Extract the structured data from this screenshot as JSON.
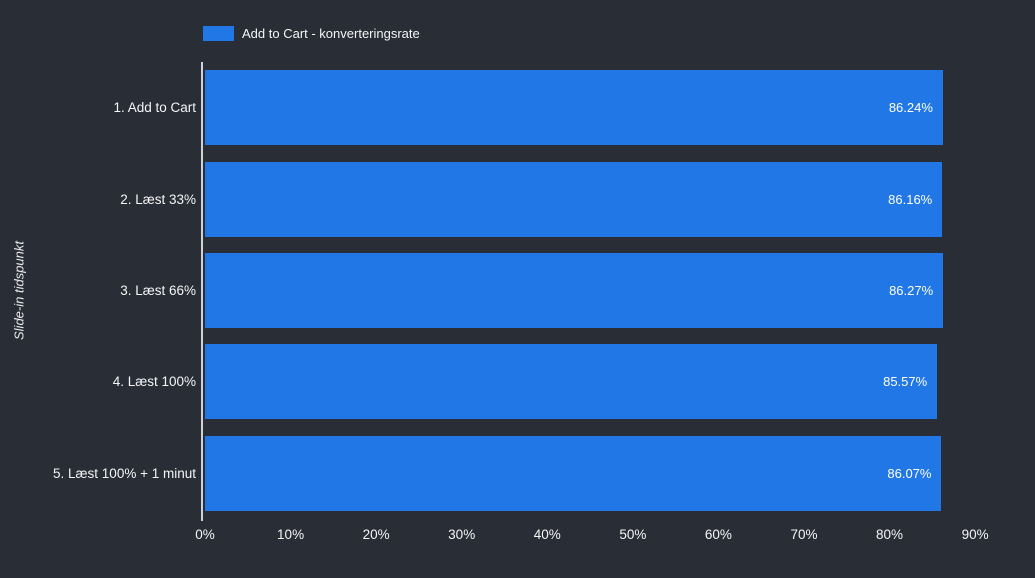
{
  "chart_data": {
    "type": "bar",
    "orientation": "horizontal",
    "series_name": "Add to Cart - konverteringsrate",
    "categories": [
      "1. Add to Cart",
      "2. Læst 33%",
      "3. Læst 66%",
      "4. Læst 100%",
      "5. Læst 100% + 1 minut"
    ],
    "values": [
      86.24,
      86.16,
      86.27,
      85.57,
      86.07
    ],
    "value_labels": [
      "86.24%",
      "86.16%",
      "86.27%",
      "85.57%",
      "86.07%"
    ],
    "ylabel": "Slide-in tidspunkt",
    "xlabel": "",
    "xlim": [
      0,
      97
    ],
    "xticks": [
      0,
      10,
      20,
      30,
      40,
      50,
      60,
      70,
      80,
      90
    ],
    "xtick_labels": [
      "0%",
      "10%",
      "20%",
      "30%",
      "40%",
      "50%",
      "60%",
      "70%",
      "80%",
      "90%"
    ],
    "grid": false,
    "legend_position": "top-left"
  },
  "colors": {
    "background": "#292d36",
    "bar": "#2177e6",
    "axis_line": "#ced1d6",
    "text": "#ffffff"
  }
}
